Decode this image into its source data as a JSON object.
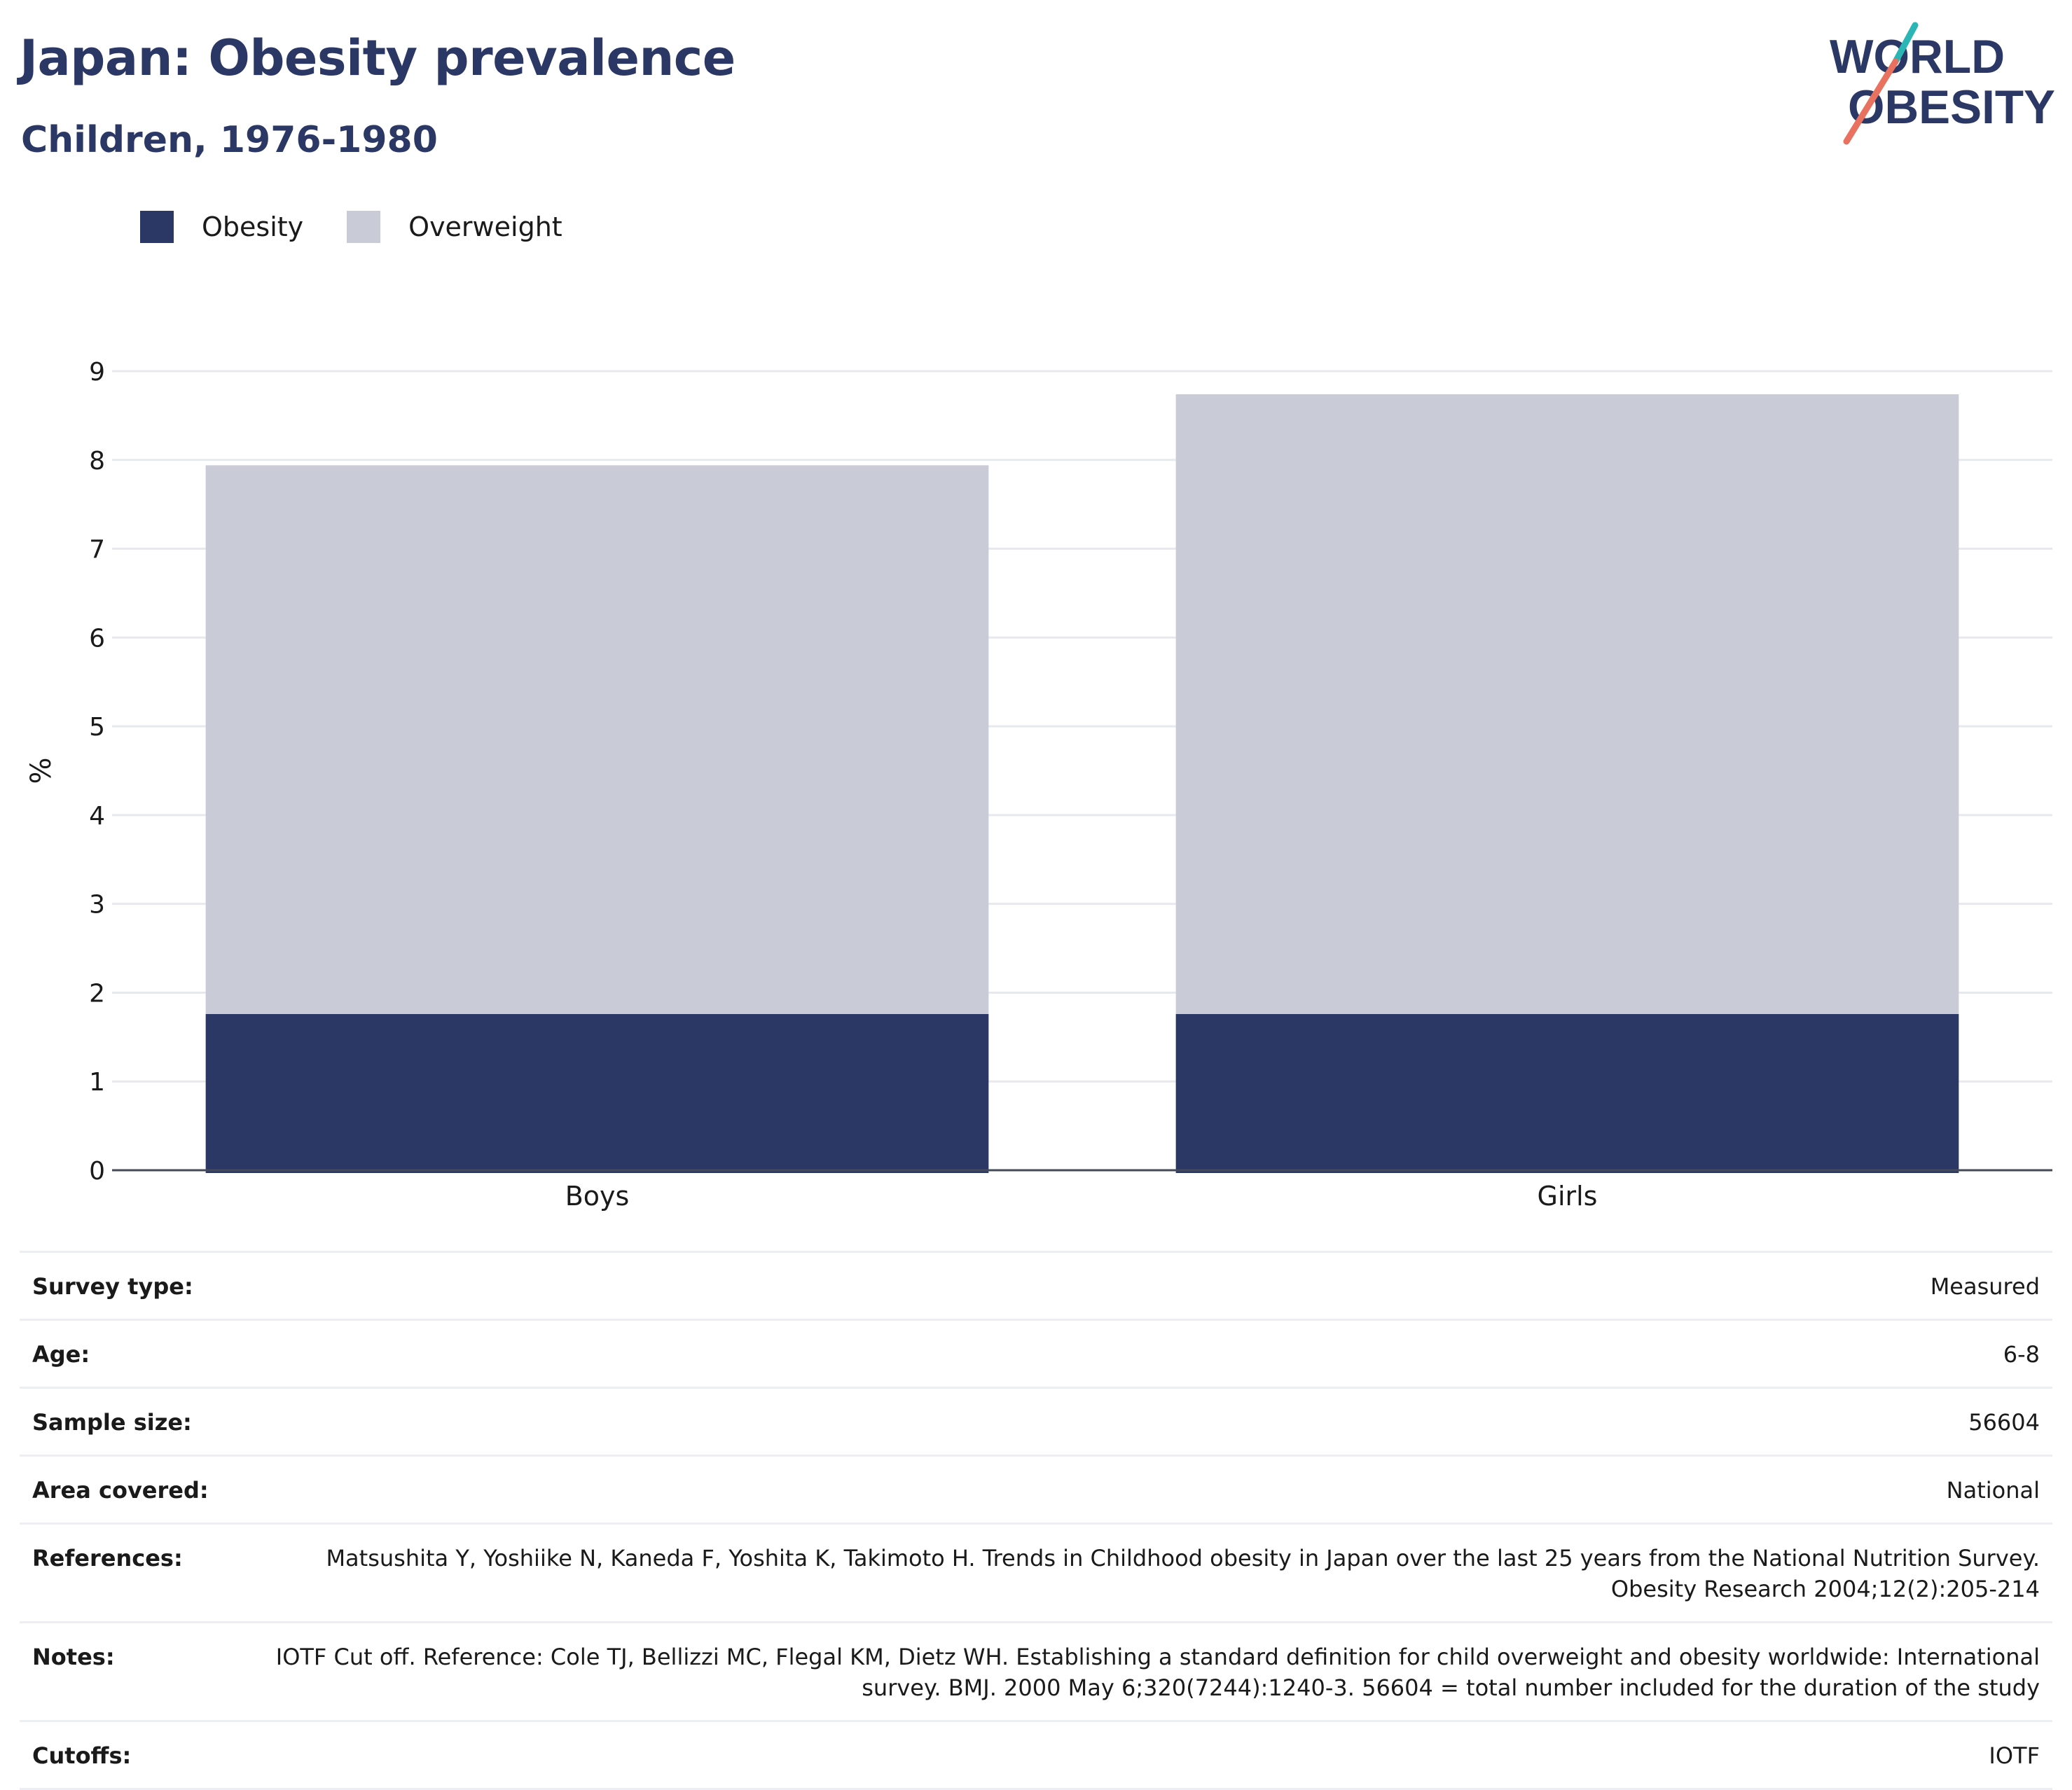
{
  "header": {
    "title": "Japan: Obesity prevalence",
    "subtitle": "Children, 1976-1980"
  },
  "logo": {
    "line1": "WORLD",
    "line2": "OBESITY",
    "colors": {
      "navy": "#2b3866",
      "teal": "#2bb5b5",
      "coral": "#e8715f"
    }
  },
  "chart_data": {
    "type": "bar",
    "stacked": true,
    "categories": [
      "Boys",
      "Girls"
    ],
    "series": [
      {
        "name": "Obesity",
        "values": [
          1.76,
          1.76
        ],
        "color": "#2b3866"
      },
      {
        "name": "Overweight",
        "values": [
          6.18,
          6.98
        ],
        "color": "#c9cbd6"
      }
    ],
    "ylabel": "%",
    "xlabel": "",
    "ylim": [
      0,
      9
    ],
    "yticks": [
      0,
      1,
      2,
      3,
      4,
      5,
      6,
      7,
      8,
      9
    ],
    "grid": true,
    "legend_position": "top-left"
  },
  "info": {
    "rows": [
      {
        "label": "Survey type:",
        "value": "Measured"
      },
      {
        "label": "Age:",
        "value": "6-8"
      },
      {
        "label": "Sample size:",
        "value": "56604"
      },
      {
        "label": "Area covered:",
        "value": "National"
      },
      {
        "label": "References:",
        "value": "Matsushita Y, Yoshiike N, Kaneda F, Yoshita K, Takimoto H. Trends in Childhood obesity in Japan over the last 25 years from the National Nutrition Survey. Obesity Research 2004;12(2):205-214"
      },
      {
        "label": "Notes:",
        "value": "IOTF Cut off. Reference: Cole TJ, Bellizzi MC, Flegal KM, Dietz WH. Establishing a standard definition for child overweight and obesity worldwide: International survey. BMJ. 2000 May 6;320(7244):1240-3. 56604 = total number included for the duration of the study"
      },
      {
        "label": "Cutoffs:",
        "value": "IOTF"
      }
    ]
  }
}
